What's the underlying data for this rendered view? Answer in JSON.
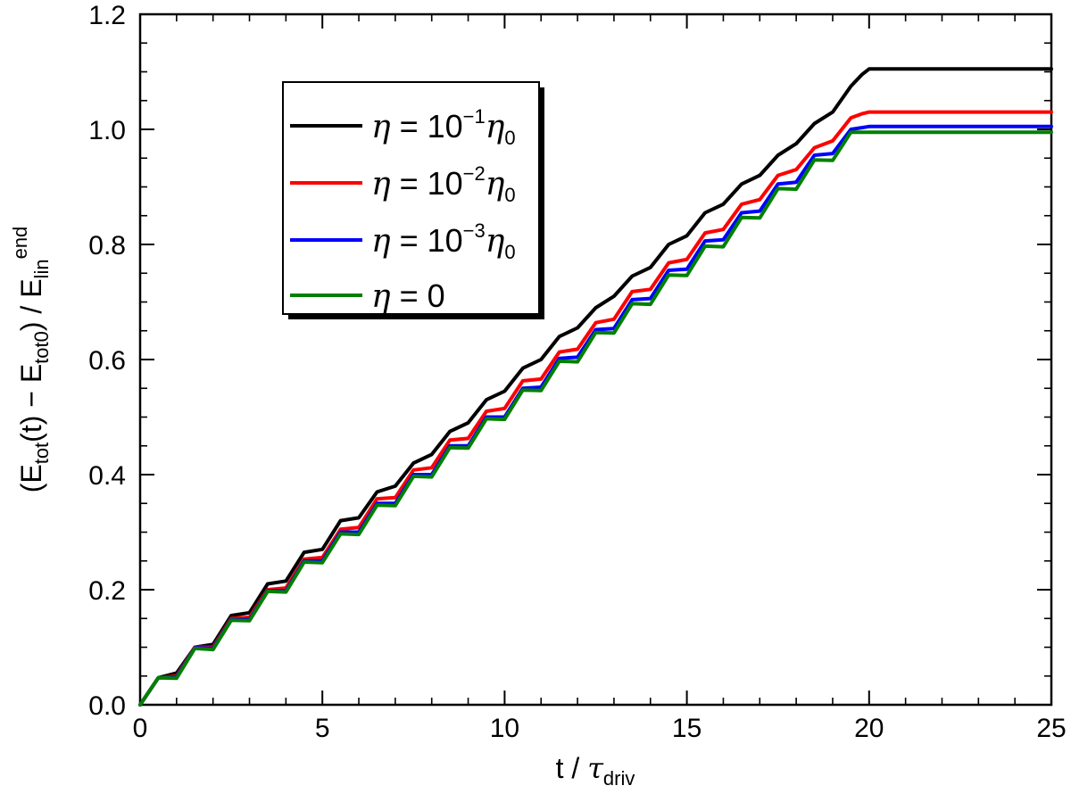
{
  "chart_data": {
    "type": "line",
    "title": "",
    "xlim": [
      0,
      25
    ],
    "ylim": [
      0.0,
      1.2
    ],
    "grid": false,
    "legend_position": "top-left",
    "xlabel": {
      "main": "t / ",
      "greek": "τ",
      "sub": "driv"
    },
    "ylabel": {
      "parts": [
        {
          "t": "(E",
          "s": "n"
        },
        {
          "t": "tot",
          "s": "sub"
        },
        {
          "t": "(t) − E",
          "s": "n"
        },
        {
          "t": "tot0",
          "s": "sub"
        },
        {
          "t": ") / E",
          "s": "n"
        },
        {
          "t": "lin",
          "s": "sub"
        },
        {
          "t": "end",
          "s": "sup"
        }
      ]
    },
    "xticks": [
      0,
      5,
      10,
      15,
      20,
      25
    ],
    "xtick_labels": [
      "0",
      "5",
      "10",
      "15",
      "20",
      "25"
    ],
    "yticks": [
      0.0,
      0.2,
      0.4,
      0.6,
      0.8,
      1.0,
      1.2
    ],
    "ytick_labels": [
      "0.0",
      "0.2",
      "0.4",
      "0.6",
      "0.8",
      "1.0",
      "1.2"
    ],
    "series": [
      {
        "name": "η = 10⁻¹η₀",
        "legend_text": {
          "pre": "η",
          "eq": " = 10",
          "exp": "−1",
          "post": "η",
          "sub": "0"
        },
        "color": "#000000",
        "end_value": 1.105,
        "x": [
          0,
          0.5,
          1,
          1.5,
          2,
          2.5,
          3,
          3.5,
          4,
          4.5,
          5,
          5.5,
          6,
          6.5,
          7,
          7.5,
          8,
          8.5,
          9,
          9.5,
          10,
          10.5,
          11,
          11.5,
          12,
          12.5,
          13,
          13.5,
          14,
          14.5,
          15,
          15.5,
          16,
          16.5,
          17,
          17.5,
          18,
          18.5,
          19,
          19.5,
          19.8,
          20,
          22,
          25
        ],
        "y": [
          0.0,
          0.047,
          0.055,
          0.1,
          0.105,
          0.155,
          0.16,
          0.21,
          0.215,
          0.265,
          0.27,
          0.32,
          0.325,
          0.37,
          0.38,
          0.42,
          0.435,
          0.475,
          0.49,
          0.53,
          0.545,
          0.585,
          0.6,
          0.64,
          0.655,
          0.69,
          0.71,
          0.745,
          0.76,
          0.8,
          0.815,
          0.855,
          0.87,
          0.905,
          0.92,
          0.955,
          0.975,
          1.01,
          1.03,
          1.075,
          1.095,
          1.105,
          1.105,
          1.105
        ]
      },
      {
        "name": "η = 10⁻²η₀",
        "legend_text": {
          "pre": "η",
          "eq": " = 10",
          "exp": "−2",
          "post": "η",
          "sub": "0"
        },
        "color": "#ff0000",
        "end_value": 1.03,
        "x": [
          0,
          0.5,
          1,
          1.5,
          2,
          2.5,
          3,
          3.5,
          4,
          4.5,
          5,
          5.5,
          6,
          6.5,
          7,
          7.5,
          8,
          8.5,
          9,
          9.5,
          10,
          10.5,
          11,
          11.5,
          12,
          12.5,
          13,
          13.5,
          14,
          14.5,
          15,
          15.5,
          16,
          16.5,
          17,
          17.5,
          18,
          18.5,
          19,
          19.5,
          19.8,
          20,
          22,
          25
        ],
        "y": [
          0.0,
          0.047,
          0.05,
          0.1,
          0.1,
          0.15,
          0.152,
          0.2,
          0.203,
          0.253,
          0.256,
          0.305,
          0.308,
          0.358,
          0.36,
          0.408,
          0.412,
          0.46,
          0.463,
          0.51,
          0.515,
          0.563,
          0.566,
          0.613,
          0.618,
          0.664,
          0.67,
          0.718,
          0.722,
          0.768,
          0.774,
          0.82,
          0.826,
          0.87,
          0.878,
          0.92,
          0.93,
          0.968,
          0.98,
          1.02,
          1.027,
          1.03,
          1.03,
          1.03
        ]
      },
      {
        "name": "η = 10⁻³η₀",
        "legend_text": {
          "pre": "η",
          "eq": " = 10",
          "exp": "−3",
          "post": "η",
          "sub": "0"
        },
        "color": "#0000ff",
        "end_value": 1.005,
        "x": [
          0,
          0.5,
          1,
          1.5,
          2,
          2.5,
          3,
          3.5,
          4,
          4.5,
          5,
          5.5,
          6,
          6.5,
          7,
          7.5,
          8,
          8.5,
          9,
          9.5,
          10,
          10.5,
          11,
          11.5,
          12,
          12.5,
          13,
          13.5,
          14,
          14.5,
          15,
          15.5,
          16,
          16.5,
          17,
          17.5,
          18,
          18.5,
          19,
          19.5,
          19.8,
          20,
          22,
          25
        ],
        "y": [
          0.0,
          0.047,
          0.048,
          0.099,
          0.098,
          0.148,
          0.148,
          0.198,
          0.198,
          0.25,
          0.25,
          0.3,
          0.3,
          0.35,
          0.35,
          0.4,
          0.4,
          0.45,
          0.45,
          0.5,
          0.5,
          0.55,
          0.552,
          0.602,
          0.604,
          0.652,
          0.654,
          0.704,
          0.706,
          0.755,
          0.757,
          0.806,
          0.808,
          0.855,
          0.858,
          0.905,
          0.908,
          0.955,
          0.958,
          1.0,
          1.003,
          1.005,
          1.005,
          1.005
        ]
      },
      {
        "name": "η = 0",
        "legend_text": {
          "pre": "η",
          "eq": " = 0",
          "exp": "",
          "post": "",
          "sub": ""
        },
        "color": "#008000",
        "end_value": 0.995,
        "x": [
          0,
          0.5,
          1,
          1.5,
          2,
          2.5,
          3,
          3.5,
          4,
          4.5,
          5,
          5.5,
          6,
          6.5,
          7,
          7.5,
          8,
          8.5,
          9,
          9.5,
          10,
          10.5,
          11,
          11.5,
          12,
          12.5,
          13,
          13.5,
          14,
          14.5,
          15,
          15.5,
          16,
          16.5,
          17,
          17.5,
          18,
          18.5,
          19,
          19.5,
          19.8,
          20,
          22,
          25
        ],
        "y": [
          0.0,
          0.047,
          0.046,
          0.098,
          0.096,
          0.147,
          0.146,
          0.197,
          0.196,
          0.248,
          0.247,
          0.297,
          0.296,
          0.347,
          0.346,
          0.397,
          0.396,
          0.447,
          0.446,
          0.497,
          0.496,
          0.547,
          0.546,
          0.597,
          0.596,
          0.647,
          0.646,
          0.697,
          0.696,
          0.747,
          0.746,
          0.797,
          0.796,
          0.847,
          0.846,
          0.897,
          0.896,
          0.947,
          0.946,
          0.995,
          0.995,
          0.995,
          0.995,
          0.995
        ]
      }
    ]
  }
}
